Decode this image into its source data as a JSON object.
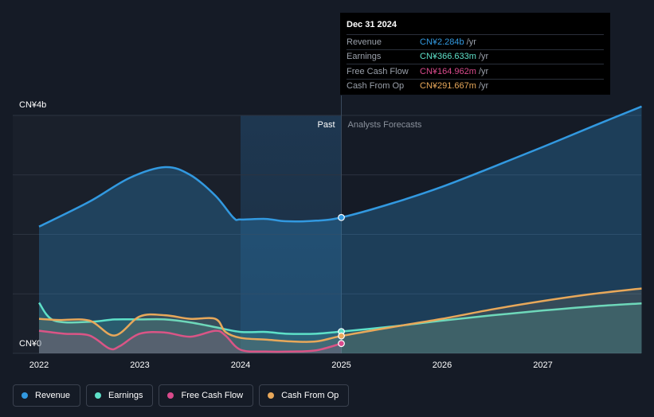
{
  "chart_data": {
    "type": "line",
    "y_unit_label_top": "CN¥4b",
    "y_unit_label_bottom": "CN¥0",
    "ylim": [
      0,
      4
    ],
    "xlim": [
      2022,
      2027.98
    ],
    "x_ticks": [
      "2022",
      "2023",
      "2024",
      "2025",
      "2026",
      "2027"
    ],
    "regions": {
      "past": "Past",
      "forecast": "Analysts Forecasts"
    },
    "divider_x": 2025.0,
    "highlight_start_x": 2024.0,
    "grid": true,
    "series": [
      {
        "name": "Revenue",
        "color": "#3299e0",
        "x": [
          2022.0,
          2022.5,
          2022.9,
          2023.25,
          2023.5,
          2023.75,
          2023.93,
          2024.0,
          2024.25,
          2024.45,
          2024.75,
          2025.0,
          2025.5,
          2026.0,
          2026.5,
          2027.0,
          2027.5,
          2027.98
        ],
        "y": [
          2.13,
          2.55,
          2.95,
          3.13,
          3.0,
          2.65,
          2.28,
          2.25,
          2.26,
          2.22,
          2.23,
          2.284,
          2.52,
          2.8,
          3.13,
          3.47,
          3.82,
          4.15
        ]
      },
      {
        "name": "Earnings",
        "color": "#5ee0c8",
        "x": [
          2022.0,
          2022.15,
          2022.5,
          2022.75,
          2023.0,
          2023.25,
          2023.5,
          2023.75,
          2024.0,
          2024.25,
          2024.45,
          2024.75,
          2025.0,
          2025.5,
          2026.0,
          2026.5,
          2027.0,
          2027.5,
          2027.98
        ],
        "y": [
          0.85,
          0.55,
          0.53,
          0.57,
          0.57,
          0.57,
          0.52,
          0.44,
          0.36,
          0.36,
          0.33,
          0.33,
          0.366633,
          0.45,
          0.55,
          0.64,
          0.72,
          0.79,
          0.84
        ]
      },
      {
        "name": "Free Cash Flow",
        "color": "#d94a8c",
        "x": [
          2022.0,
          2022.25,
          2022.5,
          2022.7,
          2022.8,
          2023.0,
          2023.25,
          2023.5,
          2023.75,
          2023.85,
          2024.0,
          2024.25,
          2024.5,
          2024.75,
          2025.0
        ],
        "y": [
          0.38,
          0.33,
          0.3,
          0.08,
          0.12,
          0.33,
          0.35,
          0.28,
          0.38,
          0.3,
          0.06,
          0.03,
          0.03,
          0.05,
          0.164962
        ]
      },
      {
        "name": "Cash From Op",
        "color": "#e8a85a",
        "x": [
          2022.0,
          2022.2,
          2022.5,
          2022.75,
          2023.0,
          2023.25,
          2023.5,
          2023.75,
          2023.85,
          2024.0,
          2024.25,
          2024.5,
          2024.75,
          2025.0,
          2025.5,
          2026.0,
          2026.5,
          2027.0,
          2027.5,
          2027.98
        ],
        "y": [
          0.58,
          0.56,
          0.55,
          0.3,
          0.62,
          0.64,
          0.58,
          0.58,
          0.36,
          0.26,
          0.23,
          0.2,
          0.2,
          0.291667,
          0.44,
          0.58,
          0.74,
          0.88,
          1.0,
          1.09
        ]
      }
    ]
  },
  "tooltip": {
    "date": "Dec 31 2024",
    "rows": [
      {
        "label": "Revenue",
        "value": "CN¥2.284b",
        "unit": "/yr",
        "color": "#3299e0"
      },
      {
        "label": "Earnings",
        "value": "CN¥366.633m",
        "unit": "/yr",
        "color": "#5ee0c8"
      },
      {
        "label": "Free Cash Flow",
        "value": "CN¥164.962m",
        "unit": "/yr",
        "color": "#d94a8c"
      },
      {
        "label": "Cash From Op",
        "value": "CN¥291.667m",
        "unit": "/yr",
        "color": "#e8a85a"
      }
    ]
  },
  "legend": [
    {
      "label": "Revenue",
      "color": "#3299e0"
    },
    {
      "label": "Earnings",
      "color": "#5ee0c8"
    },
    {
      "label": "Free Cash Flow",
      "color": "#d94a8c"
    },
    {
      "label": "Cash From Op",
      "color": "#e8a85a"
    }
  ]
}
